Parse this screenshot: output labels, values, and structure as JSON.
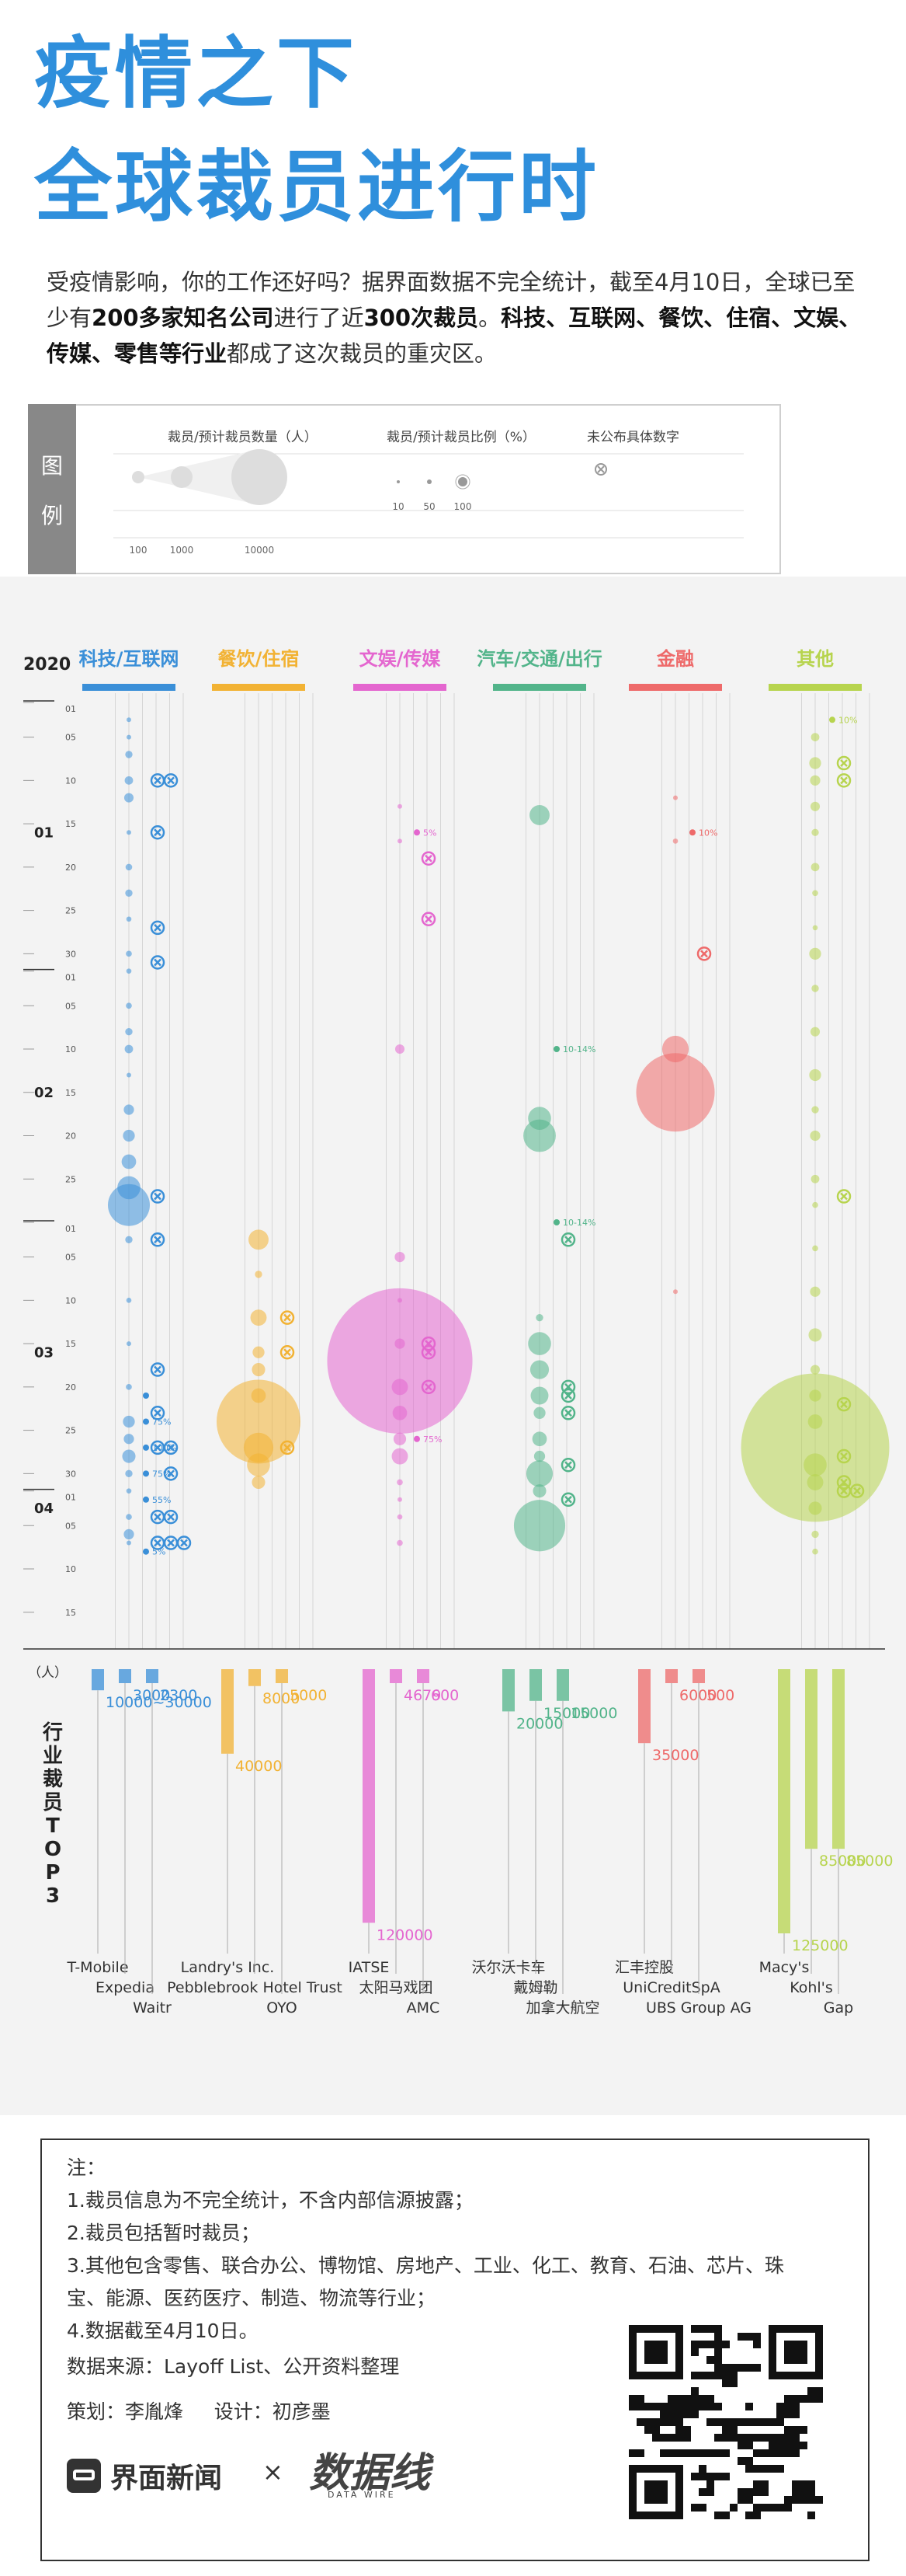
{
  "title_line1": "疫情之下",
  "title_line2": "全球裁员进行时",
  "intro": {
    "p1": "受疫情影响，你的工作还好吗？据界面数据不完全统计，截至4月10日，全球已至少有",
    "b1": "200多家知名公司",
    "p2": "进行了近",
    "b2": "300次裁员",
    "p3": "。",
    "b3": "科技、互联网、餐饮、住宿、文娱、传媒、零售等行业",
    "p4": "都成了这次裁员的重灾区。"
  },
  "legend": {
    "label_chars": [
      "图",
      "例"
    ],
    "size_title": "裁员/预计裁员数量（人）",
    "size_ticks": [
      "100",
      "1000",
      "10000"
    ],
    "ratio_title": "裁员/预计裁员比例（%）",
    "ratio_ticks": [
      "10",
      "50",
      "100"
    ],
    "unknown_title": "未公布具体数字"
  },
  "colors": {
    "tech": "#3a8fd8",
    "food": "#f2b233",
    "ent": "#e466cf",
    "auto": "#52b48a",
    "fin": "#ee6a6a",
    "other": "#b7d44e",
    "title": "#2f8fdc"
  },
  "chart_data": {
    "type": "scatter",
    "title": "疫情之下 全球裁员进行时",
    "year_label": "2020",
    "month_labels": [
      "01",
      "02",
      "03",
      "04"
    ],
    "day_ticks": [
      "01",
      "05",
      "10",
      "15",
      "20",
      "25",
      "30"
    ],
    "categories": [
      "科技/互联网",
      "餐饮/住宿",
      "文娱/传媒",
      "汽车/交通/出行",
      "金融",
      "其他"
    ],
    "category_keys": [
      "tech",
      "food",
      "ent",
      "auto",
      "fin",
      "other"
    ],
    "bubbles": {
      "tech": [
        {
          "month": 1,
          "day": 3,
          "count": 60
        },
        {
          "month": 1,
          "day": 5,
          "count": 100
        },
        {
          "month": 1,
          "day": 7,
          "count": 300
        },
        {
          "month": 1,
          "day": 10,
          "count": 400
        },
        {
          "month": 1,
          "day": 12,
          "count": 500
        },
        {
          "month": 1,
          "day": 16,
          "count": 80
        },
        {
          "month": 1,
          "day": 20,
          "count": 250
        },
        {
          "month": 1,
          "day": 23,
          "count": 300
        },
        {
          "month": 1,
          "day": 26,
          "count": 150
        },
        {
          "month": 1,
          "day": 30,
          "count": 200
        },
        {
          "month": 2,
          "day": 1,
          "count": 150
        },
        {
          "month": 2,
          "day": 5,
          "count": 200
        },
        {
          "month": 2,
          "day": 8,
          "count": 300
        },
        {
          "month": 2,
          "day": 10,
          "count": 400
        },
        {
          "month": 2,
          "day": 13,
          "count": 120
        },
        {
          "month": 2,
          "day": 17,
          "count": 600
        },
        {
          "month": 2,
          "day": 20,
          "count": 800
        },
        {
          "month": 2,
          "day": 23,
          "count": 1200
        },
        {
          "month": 2,
          "day": 26,
          "count": 3000
        },
        {
          "month": 2,
          "day": 28,
          "count": 10000
        },
        {
          "month": 3,
          "day": 3,
          "count": 300
        },
        {
          "month": 3,
          "day": 10,
          "count": 150
        },
        {
          "month": 3,
          "day": 15,
          "count": 100
        },
        {
          "month": 3,
          "day": 20,
          "count": 200
        },
        {
          "month": 3,
          "day": 24,
          "count": 800
        },
        {
          "month": 3,
          "day": 26,
          "count": 600
        },
        {
          "month": 3,
          "day": 28,
          "count": 1000
        },
        {
          "month": 3,
          "day": 30,
          "count": 300
        },
        {
          "month": 4,
          "day": 1,
          "count": 150
        },
        {
          "month": 4,
          "day": 4,
          "count": 200
        },
        {
          "month": 4,
          "day": 6,
          "count": 600
        },
        {
          "month": 4,
          "day": 7,
          "count": 100
        }
      ],
      "food": [
        {
          "month": 3,
          "day": 3,
          "count": 2300
        },
        {
          "month": 3,
          "day": 7,
          "count": 300
        },
        {
          "month": 3,
          "day": 12,
          "count": 1500
        },
        {
          "month": 3,
          "day": 16,
          "count": 800
        },
        {
          "month": 3,
          "day": 18,
          "count": 1000
        },
        {
          "month": 3,
          "day": 21,
          "count": 1200
        },
        {
          "month": 3,
          "day": 24,
          "count": 40000
        },
        {
          "month": 3,
          "day": 27,
          "count": 5000
        },
        {
          "month": 3,
          "day": 29,
          "count": 3000
        },
        {
          "month": 3,
          "day": 31,
          "count": 1000
        }
      ],
      "ent": [
        {
          "month": 1,
          "day": 13,
          "count": 60
        },
        {
          "month": 1,
          "day": 17,
          "count": 40
        },
        {
          "month": 2,
          "day": 10,
          "count": 500
        },
        {
          "month": 3,
          "day": 5,
          "count": 600
        },
        {
          "month": 3,
          "day": 10,
          "count": 100
        },
        {
          "month": 3,
          "day": 15,
          "count": 600
        },
        {
          "month": 3,
          "day": 17,
          "count": 120000
        },
        {
          "month": 3,
          "day": 20,
          "count": 1500
        },
        {
          "month": 3,
          "day": 23,
          "count": 1200
        },
        {
          "month": 3,
          "day": 26,
          "count": 900
        },
        {
          "month": 3,
          "day": 28,
          "count": 1500
        },
        {
          "month": 3,
          "day": 31,
          "count": 200
        },
        {
          "month": 4,
          "day": 2,
          "count": 100
        },
        {
          "month": 4,
          "day": 4,
          "count": 150
        },
        {
          "month": 4,
          "day": 7,
          "count": 200
        }
      ],
      "auto": [
        {
          "month": 1,
          "day": 14,
          "count": 2300
        },
        {
          "month": 2,
          "day": 18,
          "count": 3000
        },
        {
          "month": 2,
          "day": 20,
          "count": 6000
        },
        {
          "month": 3,
          "day": 12,
          "count": 300
        },
        {
          "month": 3,
          "day": 15,
          "count": 3000
        },
        {
          "month": 3,
          "day": 18,
          "count": 2000
        },
        {
          "month": 3,
          "day": 21,
          "count": 1800
        },
        {
          "month": 3,
          "day": 23,
          "count": 800
        },
        {
          "month": 3,
          "day": 26,
          "count": 1200
        },
        {
          "month": 3,
          "day": 28,
          "count": 700
        },
        {
          "month": 3,
          "day": 30,
          "count": 4000
        },
        {
          "month": 4,
          "day": 1,
          "count": 1000
        },
        {
          "month": 4,
          "day": 5,
          "count": 15000
        }
      ],
      "fin": [
        {
          "month": 1,
          "day": 12,
          "count": 100
        },
        {
          "month": 1,
          "day": 17,
          "count": 150
        },
        {
          "month": 2,
          "day": 10,
          "count": 4000
        },
        {
          "month": 2,
          "day": 15,
          "count": 35000
        },
        {
          "month": 3,
          "day": 9,
          "count": 60
        }
      ],
      "other": [
        {
          "month": 1,
          "day": 5,
          "count": 400
        },
        {
          "month": 1,
          "day": 8,
          "count": 800
        },
        {
          "month": 1,
          "day": 10,
          "count": 600
        },
        {
          "month": 1,
          "day": 13,
          "count": 500
        },
        {
          "month": 1,
          "day": 16,
          "count": 300
        },
        {
          "month": 1,
          "day": 20,
          "count": 400
        },
        {
          "month": 1,
          "day": 23,
          "count": 200
        },
        {
          "month": 1,
          "day": 27,
          "count": 150
        },
        {
          "month": 1,
          "day": 30,
          "count": 800
        },
        {
          "month": 2,
          "day": 3,
          "count": 300
        },
        {
          "month": 2,
          "day": 8,
          "count": 500
        },
        {
          "month": 2,
          "day": 13,
          "count": 800
        },
        {
          "month": 2,
          "day": 17,
          "count": 300
        },
        {
          "month": 2,
          "day": 20,
          "count": 600
        },
        {
          "month": 2,
          "day": 25,
          "count": 400
        },
        {
          "month": 2,
          "day": 28,
          "count": 200
        },
        {
          "month": 3,
          "day": 4,
          "count": 200
        },
        {
          "month": 3,
          "day": 9,
          "count": 600
        },
        {
          "month": 3,
          "day": 14,
          "count": 1000
        },
        {
          "month": 3,
          "day": 18,
          "count": 500
        },
        {
          "month": 3,
          "day": 21,
          "count": 800
        },
        {
          "month": 3,
          "day": 24,
          "count": 1200
        },
        {
          "month": 3,
          "day": 27,
          "count": 125000
        },
        {
          "month": 3,
          "day": 29,
          "count": 3000
        },
        {
          "month": 3,
          "day": 31,
          "count": 1500
        },
        {
          "month": 4,
          "day": 3,
          "count": 1000
        },
        {
          "month": 4,
          "day": 6,
          "count": 300
        },
        {
          "month": 4,
          "day": 8,
          "count": 200
        }
      ]
    },
    "ratio_points": [
      {
        "cat": "tech",
        "month": 3,
        "day": 24,
        "label": "75%"
      },
      {
        "cat": "tech",
        "month": 3,
        "day": 27,
        "label": "100%"
      },
      {
        "cat": "tech",
        "month": 3,
        "day": 30,
        "label": "75%"
      },
      {
        "cat": "tech",
        "month": 4,
        "day": 2,
        "label": "55%"
      },
      {
        "cat": "tech",
        "month": 4,
        "day": 8,
        "label": "5%"
      },
      {
        "cat": "tech",
        "month": 3,
        "day": 21,
        "label": ""
      },
      {
        "cat": "ent",
        "month": 1,
        "day": 16,
        "label": "5%"
      },
      {
        "cat": "ent",
        "month": 3,
        "day": 26,
        "label": "75%"
      },
      {
        "cat": "auto",
        "month": 2,
        "day": 10,
        "label": "10-14%"
      },
      {
        "cat": "auto",
        "month": 2,
        "day": 30,
        "label": "10-14%"
      },
      {
        "cat": "fin",
        "month": 1,
        "day": 16,
        "label": "10%"
      },
      {
        "cat": "other",
        "month": 1,
        "day": 3,
        "label": "10%"
      }
    ],
    "unknown_points": [
      {
        "cat": "tech",
        "month": 1,
        "day": 10,
        "lane": 1
      },
      {
        "cat": "tech",
        "month": 1,
        "day": 10,
        "lane": 2
      },
      {
        "cat": "tech",
        "month": 1,
        "day": 16,
        "lane": 1
      },
      {
        "cat": "tech",
        "month": 1,
        "day": 27,
        "lane": 1
      },
      {
        "cat": "tech",
        "month": 1,
        "day": 31,
        "lane": 1
      },
      {
        "cat": "tech",
        "month": 2,
        "day": 27,
        "lane": 1
      },
      {
        "cat": "tech",
        "month": 3,
        "day": 3,
        "lane": 1
      },
      {
        "cat": "tech",
        "month": 3,
        "day": 18,
        "lane": 1
      },
      {
        "cat": "tech",
        "month": 3,
        "day": 23,
        "lane": 1
      },
      {
        "cat": "tech",
        "month": 3,
        "day": 27,
        "lane": 1
      },
      {
        "cat": "tech",
        "month": 3,
        "day": 27,
        "lane": 2
      },
      {
        "cat": "tech",
        "month": 3,
        "day": 30,
        "lane": 2
      },
      {
        "cat": "tech",
        "month": 4,
        "day": 4,
        "lane": 1
      },
      {
        "cat": "tech",
        "month": 4,
        "day": 4,
        "lane": 2
      },
      {
        "cat": "tech",
        "month": 4,
        "day": 7,
        "lane": 1
      },
      {
        "cat": "tech",
        "month": 4,
        "day": 7,
        "lane": 2
      },
      {
        "cat": "tech",
        "month": 4,
        "day": 7,
        "lane": 3
      },
      {
        "cat": "food",
        "month": 3,
        "day": 12,
        "lane": 1
      },
      {
        "cat": "food",
        "month": 3,
        "day": 16,
        "lane": 1
      },
      {
        "cat": "food",
        "month": 3,
        "day": 27,
        "lane": 1
      },
      {
        "cat": "ent",
        "month": 1,
        "day": 19,
        "lane": 1
      },
      {
        "cat": "ent",
        "month": 1,
        "day": 26,
        "lane": 1
      },
      {
        "cat": "ent",
        "month": 3,
        "day": 15,
        "lane": 1
      },
      {
        "cat": "ent",
        "month": 3,
        "day": 16,
        "lane": 1
      },
      {
        "cat": "ent",
        "month": 3,
        "day": 20,
        "lane": 1
      },
      {
        "cat": "auto",
        "month": 3,
        "day": 3,
        "lane": 1
      },
      {
        "cat": "auto",
        "month": 3,
        "day": 20,
        "lane": 1
      },
      {
        "cat": "auto",
        "month": 3,
        "day": 21,
        "lane": 1
      },
      {
        "cat": "auto",
        "month": 3,
        "day": 23,
        "lane": 1
      },
      {
        "cat": "auto",
        "month": 3,
        "day": 29,
        "lane": 1
      },
      {
        "cat": "auto",
        "month": 4,
        "day": 2,
        "lane": 1
      },
      {
        "cat": "fin",
        "month": 1,
        "day": 30,
        "lane": 1
      },
      {
        "cat": "other",
        "month": 1,
        "day": 8,
        "lane": 1
      },
      {
        "cat": "other",
        "month": 1,
        "day": 10,
        "lane": 1
      },
      {
        "cat": "other",
        "month": 2,
        "day": 27,
        "lane": 1
      },
      {
        "cat": "other",
        "month": 3,
        "day": 22,
        "lane": 1
      },
      {
        "cat": "other",
        "month": 3,
        "day": 28,
        "lane": 1
      },
      {
        "cat": "other",
        "month": 3,
        "day": 31,
        "lane": 1
      },
      {
        "cat": "other",
        "month": 4,
        "day": 1,
        "lane": 1
      },
      {
        "cat": "other",
        "month": 4,
        "day": 1,
        "lane": 2
      }
    ],
    "top3_unit": "（人）",
    "top3_title": "行业裁员TOP3",
    "top3": {
      "tech": [
        {
          "name": "T-Mobile",
          "value": 10000,
          "label": "10000~30000"
        },
        {
          "name": "Expedia",
          "value": 3000,
          "label": "3000"
        },
        {
          "name": "Waitr",
          "value": 2300,
          "label": "2300"
        }
      ],
      "food": [
        {
          "name": "Landry's Inc.",
          "value": 40000,
          "label": "40000"
        },
        {
          "name": "Pebblebrook Hotel Trust",
          "value": 8000,
          "label": "8000"
        },
        {
          "name": "OYO",
          "value": 5000,
          "label": "5000"
        }
      ],
      "ent": [
        {
          "name": "IATSE",
          "value": 120000,
          "label": "120000"
        },
        {
          "name": "太阳马戏团",
          "value": 4679,
          "label": "4679"
        },
        {
          "name": "AMC",
          "value": 600,
          "label": "600"
        }
      ],
      "auto": [
        {
          "name": "沃尔沃卡车",
          "value": 20000,
          "label": "20000"
        },
        {
          "name": "戴姆勒",
          "value": 15000,
          "label": "15000"
        },
        {
          "name": "加拿大航空",
          "value": 15000,
          "label": "15000"
        }
      ],
      "fin": [
        {
          "name": "汇丰控股",
          "value": 35000,
          "label": "35000"
        },
        {
          "name": "UniCreditSpA",
          "value": 6000,
          "label": "6000"
        },
        {
          "name": "UBS Group AG",
          "value": 500,
          "label": "500"
        }
      ],
      "other": [
        {
          "name": "Macy's",
          "value": 125000,
          "label": "125000"
        },
        {
          "name": "Kohl's",
          "value": 85000,
          "label": "85000"
        },
        {
          "name": "Gap",
          "value": 85000,
          "label": "85000"
        }
      ]
    }
  },
  "notes": {
    "heading": "注：",
    "n1": "1.裁员信息为不完全统计，不含内部信源披露；",
    "n2": "2.裁员包括暂时裁员；",
    "n3a": "3.其他包含零售、联合办公、博物馆、房地产、工业、化工、教育、石油、芯片、珠",
    "n3b": "宝、能源、医药医疗、制造、物流等行业；",
    "n4": "4.数据截至4月10日。",
    "source": "数据来源：Layoff List、公开资料整理",
    "credits": "策划：李胤烽     设计：初彦墨"
  },
  "brand": {
    "name": "界面新闻",
    "times": "×",
    "logo2": "数据线",
    "logo2_sub": "DATA WIRE"
  }
}
